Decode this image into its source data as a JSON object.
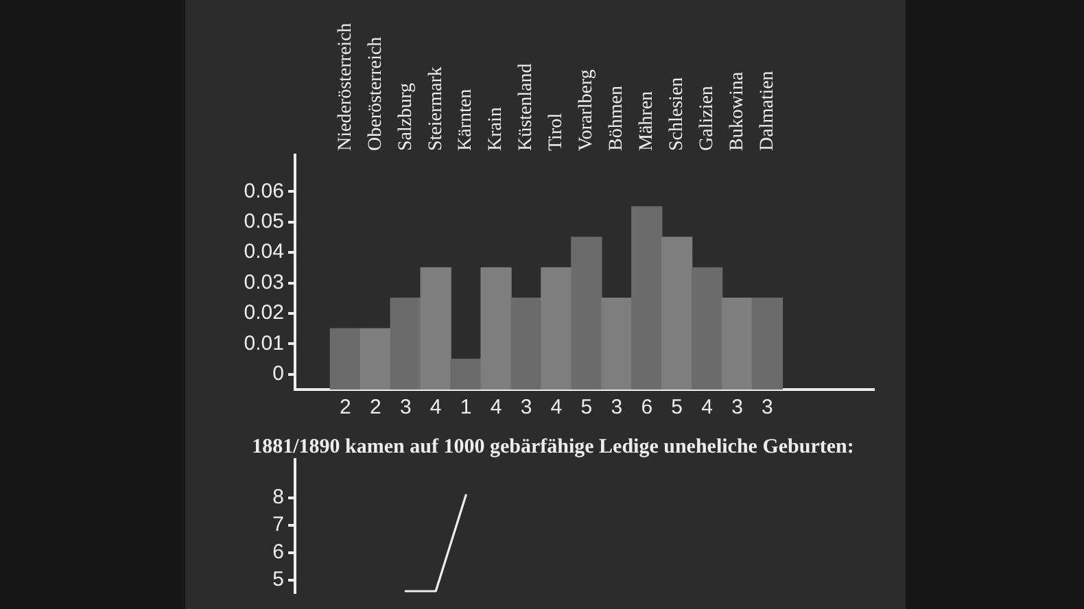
{
  "chart_data": [
    {
      "type": "bar",
      "categories": [
        "Niederösterreich",
        "Oberösterreich",
        "Salzburg",
        "Steiermark",
        "Kärnten",
        "Krain",
        "Küstenland",
        "Tirol",
        "Vorarlberg",
        "Böhmen",
        "Mähren",
        "Schlesien",
        "Galizien",
        "Bukowina",
        "Dalmatien"
      ],
      "values": [
        0.02,
        0.02,
        0.03,
        0.04,
        0.01,
        0.04,
        0.03,
        0.04,
        0.05,
        0.03,
        0.06,
        0.05,
        0.04,
        0.03,
        0.03
      ],
      "base": [
        -0.005,
        -0.005,
        -0.005,
        -0.005,
        -0.005,
        -0.005,
        -0.005,
        -0.005,
        -0.005,
        -0.005,
        -0.005,
        -0.005,
        -0.005,
        -0.005,
        -0.005
      ],
      "colors": [
        "#6b6b6b",
        "#7e7e7e",
        "#6b6b6b",
        "#7e7e7e",
        "#6b6b6b",
        "#7e7e7e",
        "#6b6b6b",
        "#7e7e7e",
        "#6b6b6b",
        "#7e7e7e",
        "#6b6b6b",
        "#7e7e7e",
        "#6b6b6b",
        "#7e7e7e",
        "#6b6b6b"
      ],
      "ylim": [
        -0.005,
        0.072
      ],
      "yticks": [
        0,
        0.01,
        0.02,
        0.03,
        0.04,
        0.05,
        0.06
      ],
      "annotations": [
        "2",
        "2",
        "3",
        "4",
        "1",
        "4",
        "3",
        "4",
        "5",
        "3",
        "6",
        "5",
        "4",
        "3",
        "3"
      ]
    },
    {
      "type": "line",
      "title": "1881/1890 kamen auf 1000 gebärfähige Ledige uneheliche Geburten:",
      "categories": [
        null,
        null,
        null,
        null,
        null,
        null,
        null,
        null,
        null,
        null,
        null,
        null,
        null,
        null,
        null
      ],
      "values": [
        null,
        null,
        4.6,
        4.6,
        8.1,
        null,
        null,
        null,
        null,
        null,
        null,
        null,
        null,
        null,
        null
      ],
      "color": "#eeeeee",
      "ylim": [
        4.55,
        9.4
      ],
      "yticks": [
        5,
        6,
        7,
        8
      ],
      "tick_labels": "y",
      "marker": "none"
    }
  ]
}
